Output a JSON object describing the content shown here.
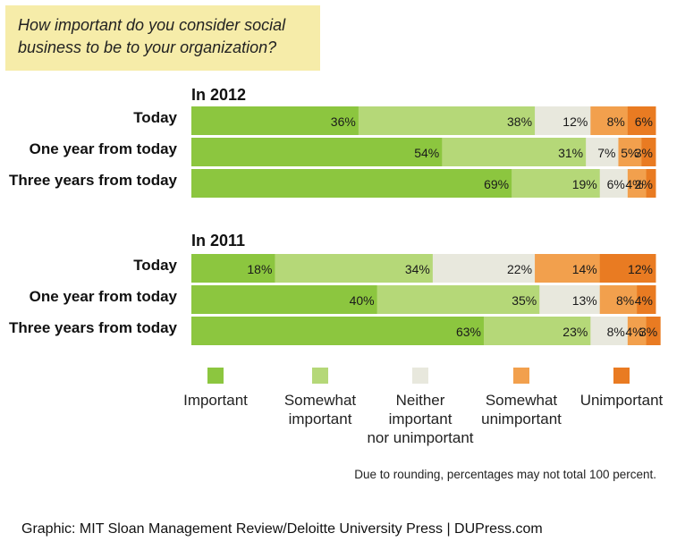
{
  "question": "How important do you consider social business to be to your organization?",
  "colors": {
    "Important": "#8cc63f",
    "Somewhat important": "#b5d878",
    "Neither important nor unimportant": "#e8e8dd",
    "Somewhat unimportant": "#f2a04d",
    "Unimportant": "#e97b22"
  },
  "chart_data": [
    {
      "type": "bar",
      "orientation": "horizontal-stacked-100",
      "title": "In 2012",
      "categories": [
        "Today",
        "One year from today",
        "Three years from today"
      ],
      "series": [
        {
          "name": "Important",
          "values": [
            36,
            54,
            69
          ]
        },
        {
          "name": "Somewhat important",
          "values": [
            38,
            31,
            19
          ]
        },
        {
          "name": "Neither important nor unimportant",
          "values": [
            12,
            7,
            6
          ]
        },
        {
          "name": "Somewhat unimportant",
          "values": [
            8,
            5,
            4
          ]
        },
        {
          "name": "Unimportant",
          "values": [
            6,
            3,
            2
          ]
        }
      ]
    },
    {
      "type": "bar",
      "orientation": "horizontal-stacked-100",
      "title": "In 2011",
      "categories": [
        "Today",
        "One year from today",
        "Three years from today"
      ],
      "series": [
        {
          "name": "Important",
          "values": [
            18,
            40,
            63
          ]
        },
        {
          "name": "Somewhat important",
          "values": [
            34,
            35,
            23
          ]
        },
        {
          "name": "Neither important nor unimportant",
          "values": [
            22,
            13,
            8
          ]
        },
        {
          "name": "Somewhat unimportant",
          "values": [
            14,
            8,
            4
          ]
        },
        {
          "name": "Unimportant",
          "values": [
            12,
            4,
            3
          ]
        }
      ]
    }
  ],
  "legend": [
    {
      "label_lines": [
        "Important"
      ]
    },
    {
      "label_lines": [
        "Somewhat",
        "important"
      ]
    },
    {
      "label_lines": [
        "Neither",
        "important",
        "nor unimportant"
      ]
    },
    {
      "label_lines": [
        "Somewhat",
        "unimportant"
      ]
    },
    {
      "label_lines": [
        "Unimportant"
      ]
    }
  ],
  "footnote": "Due to rounding, percentages may not total 100 percent.",
  "credit": "Graphic: MIT Sloan Management Review/Deloitte University Press  |  DUPress.com"
}
